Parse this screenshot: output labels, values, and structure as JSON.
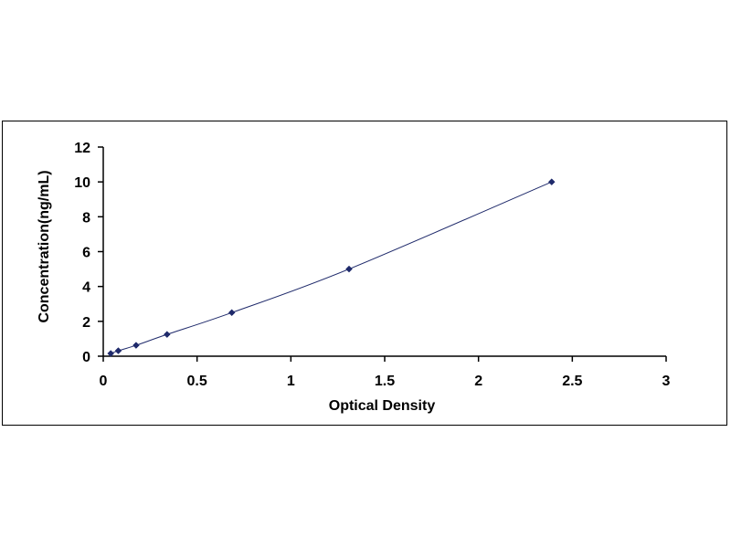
{
  "chart_data": {
    "type": "scatter",
    "title": "",
    "xlabel": "Optical Density",
    "ylabel": "Concentration(ng/mL)",
    "xlim": [
      0,
      3
    ],
    "ylim": [
      0,
      12
    ],
    "xticks": [
      0,
      0.5,
      1,
      1.5,
      2,
      2.5,
      3
    ],
    "xtick_labels": [
      "0",
      "0.5",
      "1",
      "1.5",
      "2",
      "2.5",
      "3"
    ],
    "yticks": [
      0,
      2,
      4,
      6,
      8,
      10,
      12
    ],
    "ytick_labels": [
      "0",
      "2",
      "4",
      "6",
      "8",
      "10",
      "12"
    ],
    "grid": false,
    "legend": "none",
    "series": [
      {
        "marker": "diamond",
        "color": "#1f2a6b",
        "line_color": "#1f2a6b",
        "trendline": "smooth",
        "x": [
          0.04,
          0.08,
          0.175,
          0.34,
          0.685,
          1.31,
          2.39
        ],
        "y": [
          0.156,
          0.312,
          0.625,
          1.25,
          2.5,
          5.0,
          10.0
        ]
      }
    ]
  }
}
